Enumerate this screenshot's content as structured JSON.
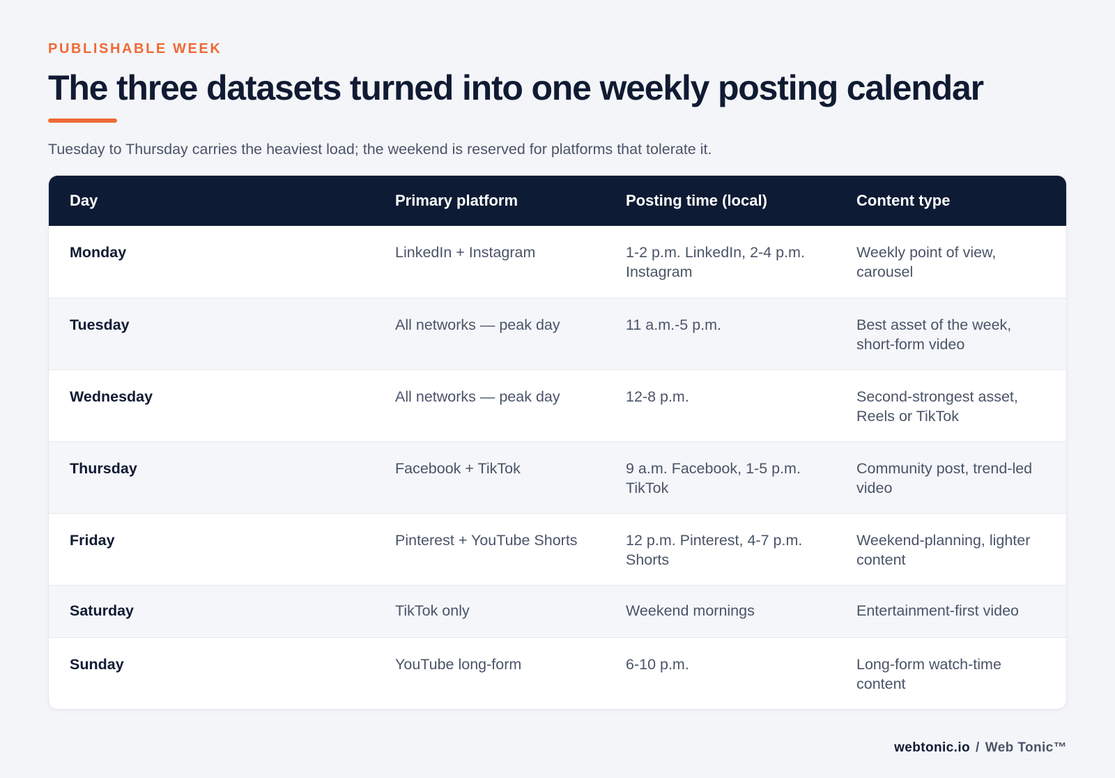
{
  "header": {
    "eyebrow": "PUBLISHABLE WEEK",
    "title": "The three datasets turned into one weekly posting calendar",
    "subtitle": "Tuesday to Thursday carries the heaviest load; the weekend is reserved for platforms that tolerate it."
  },
  "table": {
    "columns": [
      "Day",
      "Primary platform",
      "Posting time (local)",
      "Content type"
    ],
    "rows": [
      {
        "day": "Monday",
        "platform": "LinkedIn + Instagram",
        "time": "1-2 p.m. LinkedIn, 2-4 p.m. Instagram",
        "content": "Weekly point of view, carousel"
      },
      {
        "day": "Tuesday",
        "platform": "All networks — peak day",
        "time": "11 a.m.-5 p.m.",
        "content": "Best asset of the week, short-form video"
      },
      {
        "day": "Wednesday",
        "platform": "All networks — peak day",
        "time": "12-8 p.m.",
        "content": "Second-strongest asset, Reels or TikTok"
      },
      {
        "day": "Thursday",
        "platform": "Facebook + TikTok",
        "time": "9 a.m. Facebook, 1-5 p.m. TikTok",
        "content": "Community post, trend-led video"
      },
      {
        "day": "Friday",
        "platform": "Pinterest + YouTube Shorts",
        "time": "12 p.m. Pinterest, 4-7 p.m. Shorts",
        "content": "Weekend-planning, lighter content"
      },
      {
        "day": "Saturday",
        "platform": "TikTok only",
        "time": "Weekend mornings",
        "content": "Entertainment-first video"
      },
      {
        "day": "Sunday",
        "platform": "YouTube long-form",
        "time": "6-10 p.m.",
        "content": "Long-form watch-time content"
      }
    ]
  },
  "footer": {
    "site": "webtonic.io",
    "separator": "/",
    "brand": "Web Tonic™"
  },
  "colors": {
    "accent": "#ee6a35",
    "header_bg": "#0e1b34",
    "text_dark": "#101b33",
    "text_muted": "#4a5468"
  }
}
